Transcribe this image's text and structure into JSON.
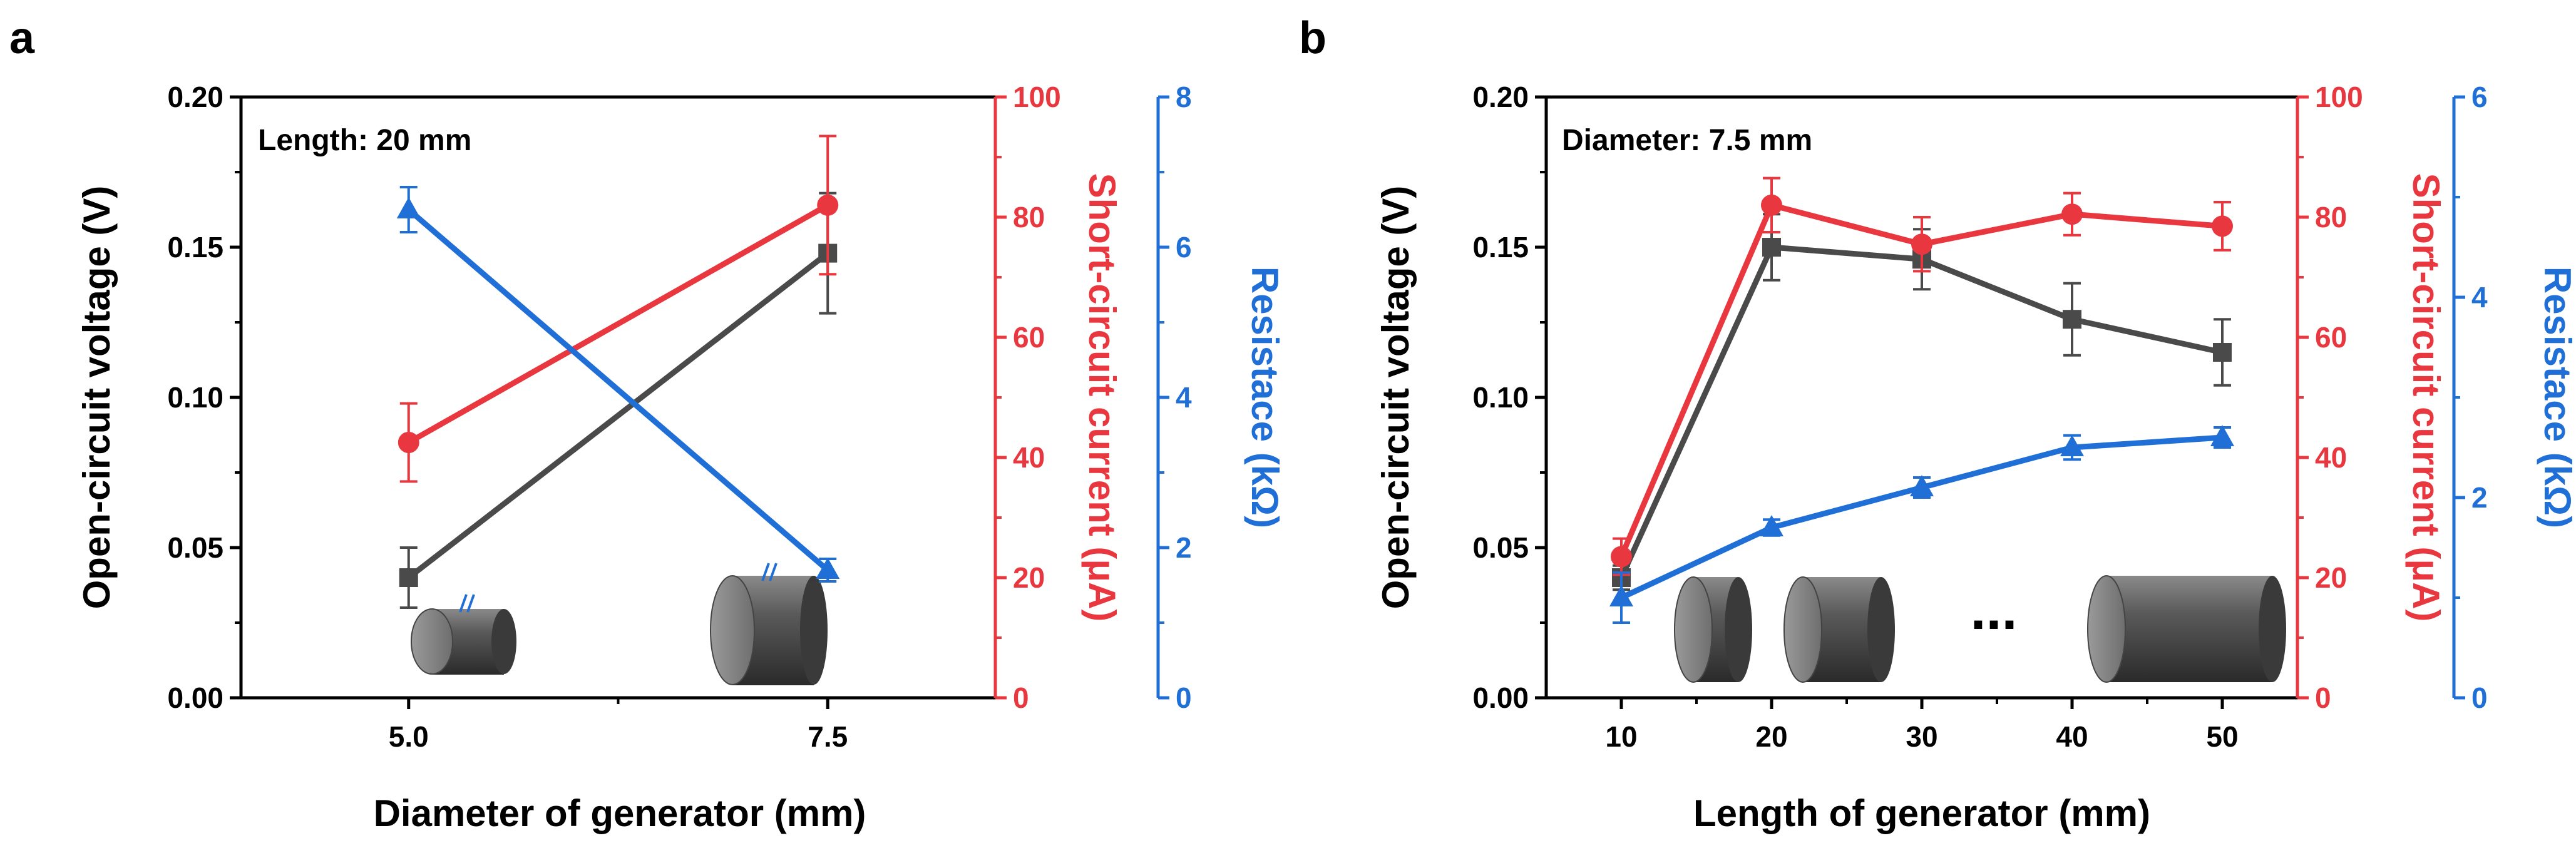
{
  "colors": {
    "voltage": "#4a4a4a",
    "current": "#e8373f",
    "resistance": "#1f6fd6",
    "axis": "#000000"
  },
  "chart_data": [
    {
      "type": "line",
      "panel": "a",
      "annotation": "Length: 20 mm",
      "xlabel": "Diameter of generator (mm)",
      "x": [
        5.0,
        7.5
      ],
      "x_tick_labels": [
        "5.0",
        "7.5"
      ],
      "xlim": [
        4.0,
        8.5
      ],
      "y_axes": {
        "left": {
          "label": "Open-circuit voltage (V)",
          "lim": [
            0,
            0.2
          ],
          "ticks": [
            "0.00",
            "0.05",
            "0.10",
            "0.15",
            "0.20"
          ]
        },
        "right1": {
          "label": "Short-circuit current (μA)",
          "lim": [
            0,
            100
          ],
          "ticks": [
            "0",
            "20",
            "40",
            "60",
            "80",
            "100"
          ]
        },
        "right2": {
          "label": "Resistace (kΩ)",
          "lim": [
            0,
            8
          ],
          "ticks": [
            "0",
            "2",
            "4",
            "6",
            "8"
          ]
        }
      },
      "series": [
        {
          "name": "Open-circuit voltage",
          "axis": "left",
          "marker": "square",
          "values": [
            0.04,
            0.148
          ],
          "errors": [
            0.01,
            0.02
          ]
        },
        {
          "name": "Short-circuit current",
          "axis": "right1",
          "marker": "circle",
          "values": [
            42.5,
            82
          ],
          "errors": [
            6.5,
            11.5
          ]
        },
        {
          "name": "Resistance",
          "axis": "right2",
          "marker": "triangle",
          "values": [
            6.5,
            1.7
          ],
          "errors": [
            0.3,
            0.15
          ]
        }
      ]
    },
    {
      "type": "line",
      "panel": "b",
      "annotation": "Diameter: 7.5 mm",
      "ellipsis": "...",
      "xlabel": "Length of generator (mm)",
      "x": [
        10,
        20,
        30,
        40,
        50
      ],
      "x_tick_labels": [
        "10",
        "20",
        "30",
        "40",
        "50"
      ],
      "xlim": [
        5,
        55
      ],
      "y_axes": {
        "left": {
          "label": "Open-circuit voltage (V)",
          "lim": [
            0,
            0.2
          ],
          "ticks": [
            "0.00",
            "0.05",
            "0.10",
            "0.15",
            "0.20"
          ]
        },
        "right1": {
          "label": "Short-circuit current (μA)",
          "lim": [
            0,
            100
          ],
          "ticks": [
            "0",
            "20",
            "40",
            "60",
            "80",
            "100"
          ]
        },
        "right2": {
          "label": "Resistace (kΩ)",
          "lim": [
            0,
            6
          ],
          "ticks": [
            "0",
            "2",
            "4",
            "6"
          ]
        }
      },
      "series": [
        {
          "name": "Open-circuit voltage",
          "axis": "left",
          "marker": "square",
          "values": [
            0.04,
            0.15,
            0.146,
            0.126,
            0.115
          ],
          "errors": [
            0.004,
            0.011,
            0.01,
            0.012,
            0.011
          ]
        },
        {
          "name": "Short-circuit current",
          "axis": "right1",
          "marker": "circle",
          "values": [
            23.5,
            82,
            75.5,
            80.5,
            78.5
          ],
          "errors": [
            3,
            4.5,
            4.5,
            3.5,
            4
          ]
        },
        {
          "name": "Resistance",
          "axis": "right2",
          "marker": "triangle",
          "values": [
            1.0,
            1.7,
            2.1,
            2.5,
            2.6
          ],
          "errors": [
            0.25,
            0.08,
            0.1,
            0.12,
            0.1
          ]
        }
      ]
    }
  ]
}
